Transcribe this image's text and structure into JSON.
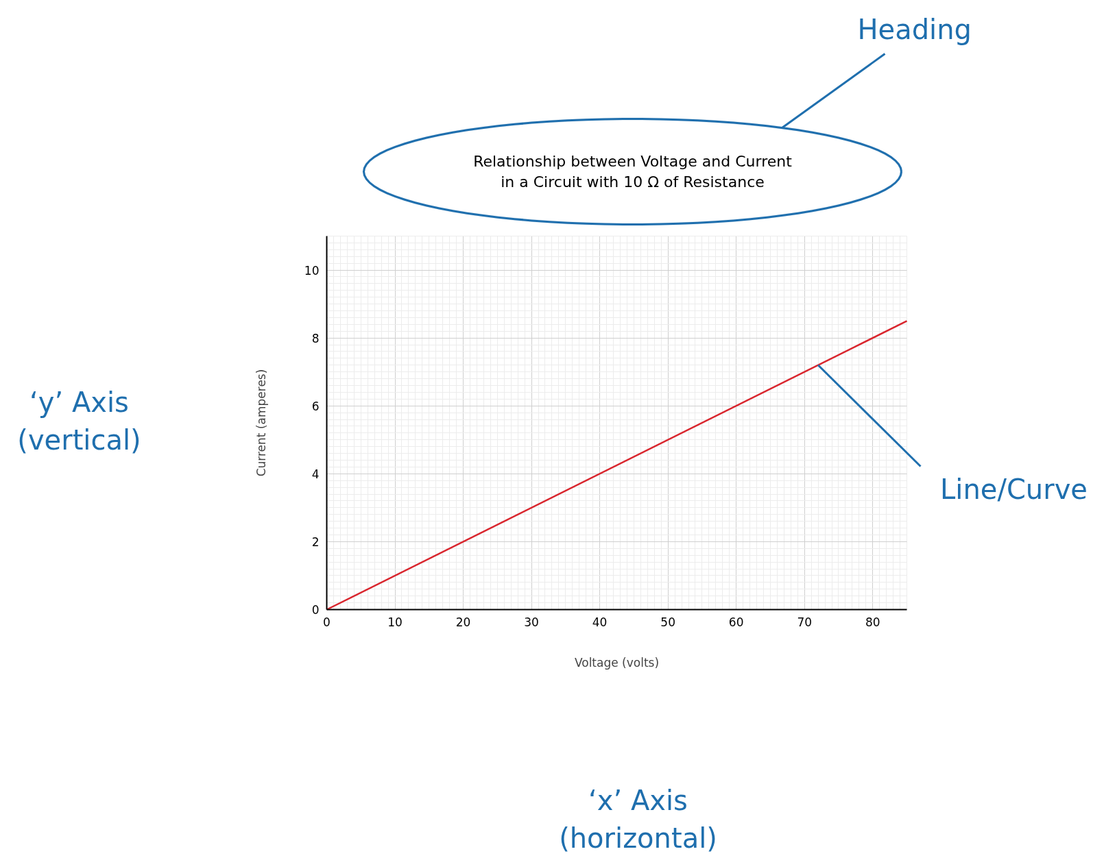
{
  "chart_data": {
    "type": "line",
    "title": "Relationship between Voltage and Current\nin a Circuit with 10 Ω of Resistance",
    "xlabel": "Voltage (volts)",
    "ylabel": "Current (amperes)",
    "x": [
      0,
      85
    ],
    "series": [
      {
        "color": "#d9262e",
        "values": [
          0,
          8.5
        ]
      }
    ],
    "xlim": [
      0,
      85
    ],
    "xticks": [
      0,
      10,
      20,
      30,
      40,
      50,
      60,
      70,
      80
    ],
    "ylim": [
      0,
      11
    ],
    "yticks": [
      0,
      2,
      4,
      6,
      8,
      10
    ],
    "grid": true,
    "marker": "none",
    "line_style": "solid",
    "annotations": [
      "Heading",
      "‘y’ Axis\n(vertical)",
      "‘x’ Axis\n(horizontal)",
      {
        "text": "Line/Curve",
        "x": 72,
        "y": 7.2
      }
    ]
  }
}
